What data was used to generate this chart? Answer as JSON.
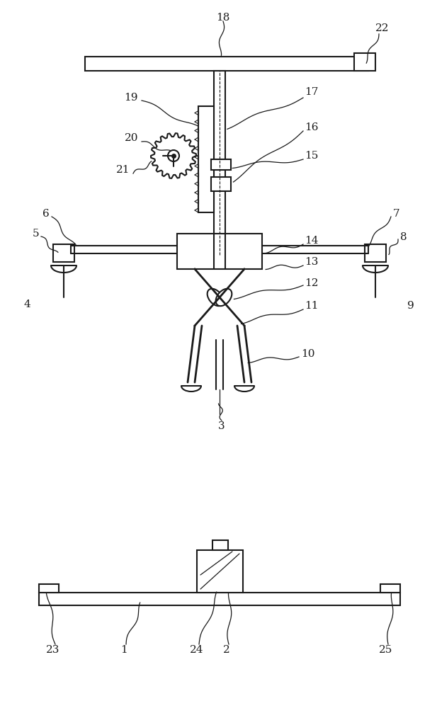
{
  "bg_color": "#ffffff",
  "line_color": "#1a1a1a",
  "label_color": "#1a1a1a",
  "line_width": 1.5,
  "thin_line": 0.8,
  "label_fontsize": 11,
  "fig_width": 6.17,
  "fig_height": 10.0,
  "dpi": 100
}
